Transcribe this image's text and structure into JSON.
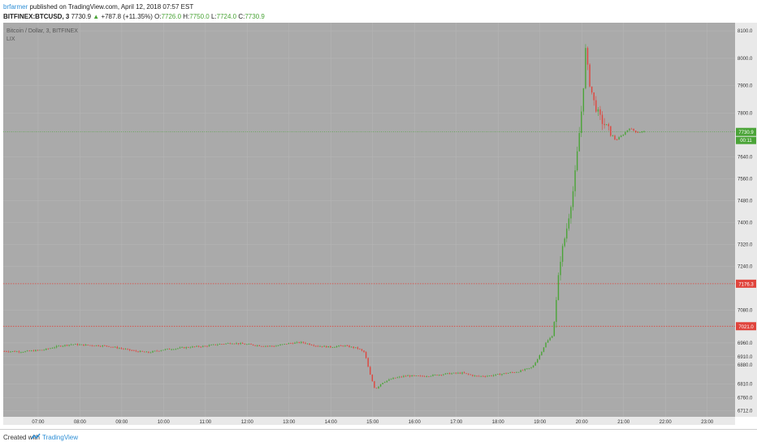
{
  "header": {
    "author": "brfarmer",
    "publish_text": "published on TradingView.com, April 12, 2018 07:57 EST",
    "symbol": "BITFINEX:BTCUSD, 3",
    "last": "7730.9",
    "change": "+787.8 (+11.35%)",
    "o_label": "O:",
    "o_val": "7726.0",
    "h_label": "H:",
    "h_val": "7750.0",
    "l_label": "L:",
    "l_val": "7724.0",
    "c_label": "C:",
    "c_val": "7730.9"
  },
  "legend": {
    "title": "Bitcoin / Dollar, 3, BITFINEX",
    "indicator": "LIX"
  },
  "footer": {
    "created_with": "Created with",
    "brand": "TradingView"
  },
  "colors": {
    "panel": "#aaaaaa",
    "up": "#4aa437",
    "down": "#e0443c",
    "grid": "#b7b7b7"
  },
  "chart_data": {
    "type": "candlestick",
    "x_ticks": [
      "07:00",
      "08:00",
      "09:00",
      "10:00",
      "11:00",
      "12:00",
      "13:00",
      "14:00",
      "15:00",
      "16:00",
      "17:00",
      "18:00",
      "19:00",
      "20:00",
      "21:00",
      "22:00",
      "23:00"
    ],
    "y_ticks": [
      8100.0,
      8000.0,
      7900.0,
      7800.0,
      7640.0,
      7560.0,
      7480.0,
      7400.0,
      7320.0,
      7240.0,
      7080.0,
      6960.0,
      6910.0,
      6880.0,
      6810.0,
      6760.0,
      6712.0
    ],
    "ylim": [
      6690,
      8130
    ],
    "xlim": [
      "06:10",
      "23:40"
    ],
    "last_price_label": "7730.9",
    "countdown_label": "00:11",
    "levels": [
      {
        "label": "7176.3",
        "value": 7176.3
      },
      {
        "label": "7021.0",
        "value": 7021.0
      }
    ],
    "anchors": [
      [
        "06:10",
        6930
      ],
      [
        "06:40",
        6928
      ],
      [
        "07:10",
        6935
      ],
      [
        "07:30",
        6948
      ],
      [
        "07:50",
        6955
      ],
      [
        "08:10",
        6952
      ],
      [
        "08:40",
        6949
      ],
      [
        "09:00",
        6940
      ],
      [
        "09:20",
        6930
      ],
      [
        "09:40",
        6925
      ],
      [
        "10:00",
        6935
      ],
      [
        "10:20",
        6940
      ],
      [
        "10:40",
        6945
      ],
      [
        "11:00",
        6948
      ],
      [
        "11:20",
        6955
      ],
      [
        "11:40",
        6960
      ],
      [
        "12:00",
        6955
      ],
      [
        "12:20",
        6950
      ],
      [
        "12:40",
        6948
      ],
      [
        "13:00",
        6958
      ],
      [
        "13:20",
        6962
      ],
      [
        "13:40",
        6950
      ],
      [
        "14:00",
        6945
      ],
      [
        "14:20",
        6950
      ],
      [
        "14:40",
        6940
      ],
      [
        "14:50",
        6925
      ],
      [
        "14:57",
        6850
      ],
      [
        "15:05",
        6790
      ],
      [
        "15:15",
        6815
      ],
      [
        "15:30",
        6830
      ],
      [
        "15:50",
        6840
      ],
      [
        "16:10",
        6838
      ],
      [
        "16:30",
        6842
      ],
      [
        "16:50",
        6848
      ],
      [
        "17:10",
        6850
      ],
      [
        "17:30",
        6838
      ],
      [
        "17:50",
        6840
      ],
      [
        "18:10",
        6848
      ],
      [
        "18:30",
        6855
      ],
      [
        "18:50",
        6870
      ],
      [
        "19:00",
        6910
      ],
      [
        "19:10",
        6960
      ],
      [
        "19:20",
        6990
      ],
      [
        "19:25",
        7110
      ],
      [
        "19:30",
        7255
      ],
      [
        "19:40",
        7380
      ],
      [
        "19:50",
        7530
      ],
      [
        "19:57",
        7700
      ],
      [
        "20:03",
        7860
      ],
      [
        "20:07",
        8030
      ],
      [
        "20:12",
        7920
      ],
      [
        "20:20",
        7830
      ],
      [
        "20:30",
        7770
      ],
      [
        "20:40",
        7740
      ],
      [
        "20:50",
        7700
      ],
      [
        "21:00",
        7720
      ],
      [
        "21:10",
        7745
      ],
      [
        "21:20",
        7730
      ],
      [
        "21:30",
        7732
      ]
    ]
  }
}
